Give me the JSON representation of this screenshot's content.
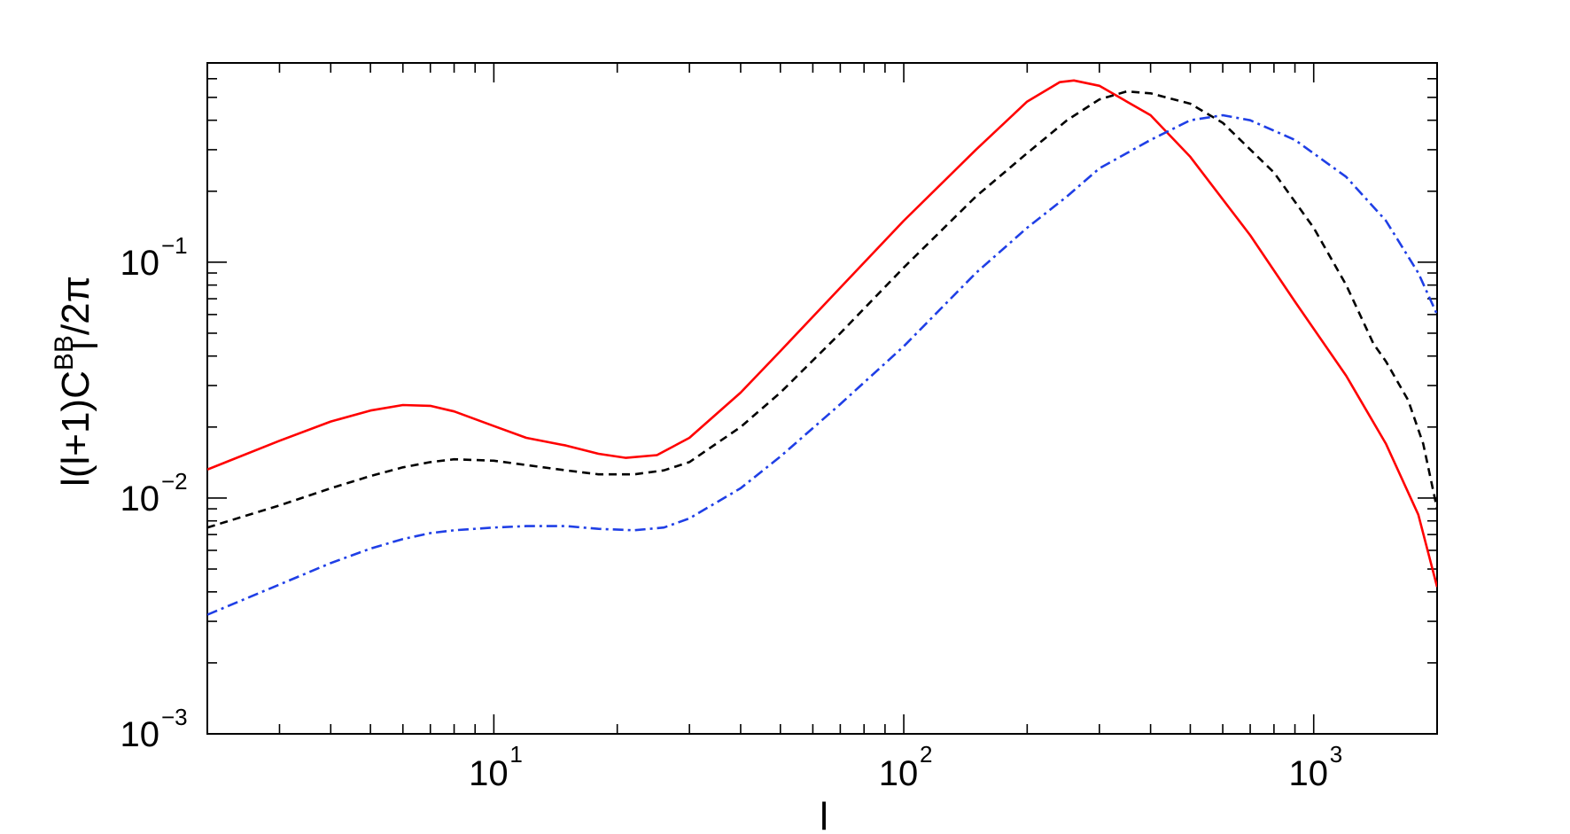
{
  "chart_data": {
    "type": "line",
    "xlabel": "l",
    "ylabel": {
      "prefix": "l(l+1)C",
      "subscript": "l",
      "superscript": "BB",
      "suffix": "/2π"
    },
    "xscale": "log",
    "yscale": "log",
    "xlim": [
      2,
      2000
    ],
    "ylim": [
      0.001,
      0.7
    ],
    "xticks": [
      {
        "base": "10",
        "exp": "1",
        "value": 10
      },
      {
        "base": "10",
        "exp": "2",
        "value": 100
      },
      {
        "base": "10",
        "exp": "3",
        "value": 1000
      }
    ],
    "yticks": [
      {
        "base": "10",
        "exp": "−3",
        "value": 0.001
      },
      {
        "base": "10",
        "exp": "−2",
        "value": 0.01
      },
      {
        "base": "10",
        "exp": "−1",
        "value": 0.1
      }
    ],
    "grid": false,
    "legend": "none",
    "series": [
      {
        "color": "#ff0000",
        "style": "solid",
        "points": [
          [
            2,
            0.0132
          ],
          [
            3,
            0.0175
          ],
          [
            4,
            0.0211
          ],
          [
            5,
            0.0235
          ],
          [
            6,
            0.0248
          ],
          [
            7,
            0.0246
          ],
          [
            8,
            0.0233
          ],
          [
            10,
            0.0202
          ],
          [
            12,
            0.018
          ],
          [
            15,
            0.0167
          ],
          [
            18,
            0.0154
          ],
          [
            21,
            0.0148
          ],
          [
            25,
            0.0152
          ],
          [
            30,
            0.018
          ],
          [
            40,
            0.028
          ],
          [
            50,
            0.042
          ],
          [
            70,
            0.078
          ],
          [
            100,
            0.15
          ],
          [
            150,
            0.3
          ],
          [
            200,
            0.48
          ],
          [
            240,
            0.58
          ],
          [
            260,
            0.59
          ],
          [
            300,
            0.56
          ],
          [
            400,
            0.42
          ],
          [
            500,
            0.28
          ],
          [
            700,
            0.13
          ],
          [
            900,
            0.068
          ],
          [
            1200,
            0.033
          ],
          [
            1500,
            0.017
          ],
          [
            1800,
            0.0085
          ],
          [
            2000,
            0.0042
          ]
        ]
      },
      {
        "color": "#000000",
        "style": "dashed",
        "points": [
          [
            2,
            0.0075
          ],
          [
            3,
            0.0093
          ],
          [
            4,
            0.011
          ],
          [
            5,
            0.0124
          ],
          [
            6,
            0.0135
          ],
          [
            7,
            0.0142
          ],
          [
            8,
            0.0146
          ],
          [
            10,
            0.0144
          ],
          [
            12,
            0.0138
          ],
          [
            15,
            0.0131
          ],
          [
            18,
            0.0126
          ],
          [
            22,
            0.0126
          ],
          [
            26,
            0.0131
          ],
          [
            30,
            0.0142
          ],
          [
            40,
            0.02
          ],
          [
            50,
            0.028
          ],
          [
            70,
            0.05
          ],
          [
            100,
            0.095
          ],
          [
            150,
            0.19
          ],
          [
            200,
            0.29
          ],
          [
            250,
            0.4
          ],
          [
            300,
            0.49
          ],
          [
            350,
            0.53
          ],
          [
            400,
            0.52
          ],
          [
            500,
            0.47
          ],
          [
            600,
            0.39
          ],
          [
            800,
            0.24
          ],
          [
            1000,
            0.14
          ],
          [
            1200,
            0.08
          ],
          [
            1400,
            0.045
          ],
          [
            1500,
            0.038
          ],
          [
            1700,
            0.026
          ],
          [
            1850,
            0.017
          ],
          [
            2000,
            0.009
          ]
        ]
      },
      {
        "color": "#1f3fe6",
        "style": "dashdot",
        "points": [
          [
            2,
            0.0032
          ],
          [
            3,
            0.0043
          ],
          [
            4,
            0.0053
          ],
          [
            5,
            0.0061
          ],
          [
            6,
            0.0067
          ],
          [
            7,
            0.0071
          ],
          [
            8,
            0.0073
          ],
          [
            10,
            0.0075
          ],
          [
            12,
            0.0076
          ],
          [
            15,
            0.0076
          ],
          [
            18,
            0.0074
          ],
          [
            22,
            0.0073
          ],
          [
            26,
            0.0075
          ],
          [
            30,
            0.0082
          ],
          [
            40,
            0.011
          ],
          [
            50,
            0.015
          ],
          [
            70,
            0.025
          ],
          [
            100,
            0.044
          ],
          [
            150,
            0.09
          ],
          [
            200,
            0.14
          ],
          [
            250,
            0.19
          ],
          [
            300,
            0.25
          ],
          [
            400,
            0.33
          ],
          [
            500,
            0.4
          ],
          [
            600,
            0.42
          ],
          [
            700,
            0.4
          ],
          [
            900,
            0.33
          ],
          [
            1200,
            0.23
          ],
          [
            1500,
            0.15
          ],
          [
            1800,
            0.09
          ],
          [
            2000,
            0.06
          ]
        ]
      }
    ]
  }
}
